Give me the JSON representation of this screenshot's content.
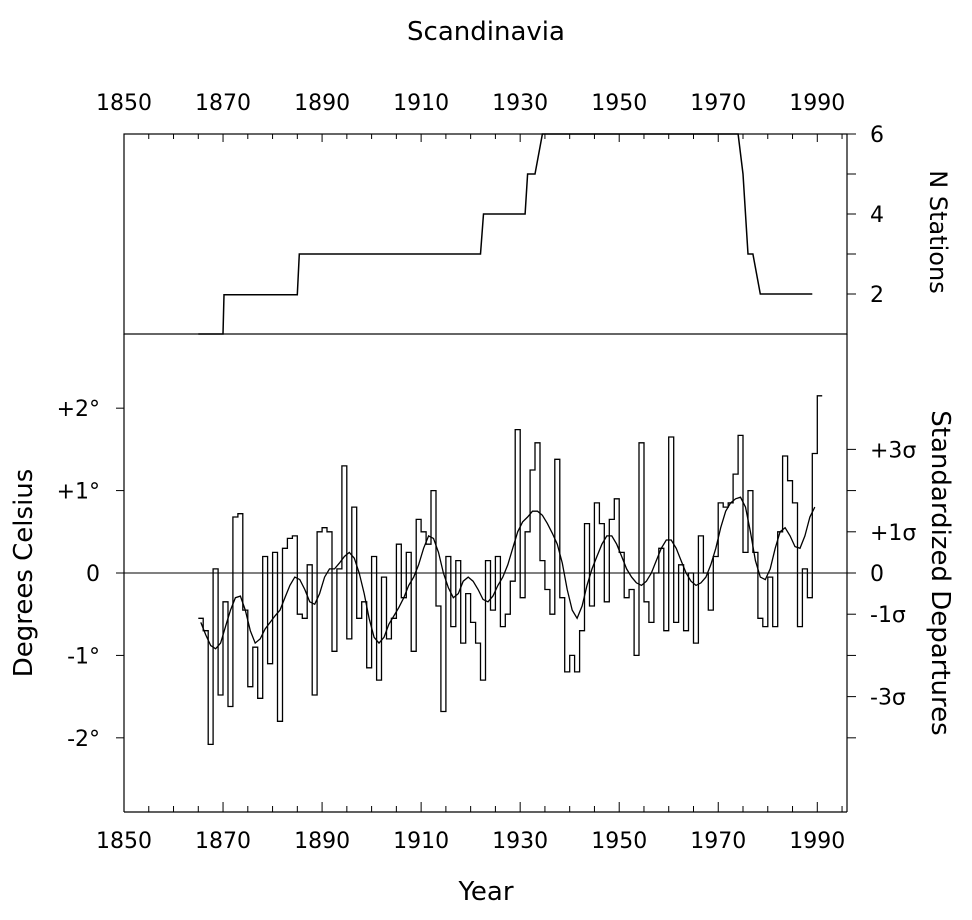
{
  "chart_data": [
    {
      "type": "line",
      "title": "Scandinavia",
      "y_axis_label": "N Stations",
      "xlim": [
        1850,
        1996
      ],
      "ylim": [
        1,
        6
      ],
      "x_tick_labels": [
        "1850",
        "1870",
        "1890",
        "1910",
        "1930",
        "1950",
        "1970",
        "1990"
      ],
      "y_tick_labels": [
        "2",
        "4",
        "6"
      ],
      "series": [
        {
          "values": [
            [
              1865,
              1
            ],
            [
              1870,
              1
            ],
            [
              1870.2,
              1.98
            ],
            [
              1885,
              1.98
            ],
            [
              1885.4,
              3
            ],
            [
              1922,
              3
            ],
            [
              1922.6,
              4
            ],
            [
              1931,
              4
            ],
            [
              1931.5,
              5
            ],
            [
              1933,
              5
            ],
            [
              1934.5,
              6
            ],
            [
              1974,
              6
            ],
            [
              1975,
              5
            ],
            [
              1976,
              3
            ],
            [
              1977,
              3
            ],
            [
              1978.5,
              2
            ],
            [
              1989,
              2
            ]
          ]
        }
      ]
    },
    {
      "type": "bar",
      "xlabel": "Year",
      "ylabel": "Degrees Celsius",
      "y2label": "Standardized Departures",
      "xlim": [
        1850,
        1996
      ],
      "ylim": [
        -2.9,
        2.9
      ],
      "x_tick_labels": [
        "1850",
        "1870",
        "1890",
        "1910",
        "1930",
        "1950",
        "1970",
        "1990"
      ],
      "y_tick_labels": [
        "+2°",
        "+1°",
        "0",
        "-1°",
        "-2°"
      ],
      "y2_tick_labels": [
        "+3σ",
        "+1σ",
        "0",
        "-1σ",
        "-3σ"
      ],
      "years_start": 1865,
      "annual_anomalies": [
        -0.55,
        -0.7,
        -2.08,
        0.05,
        -1.48,
        -0.35,
        -1.62,
        0.68,
        0.72,
        -0.45,
        -1.38,
        -0.9,
        -1.52,
        0.2,
        -1.1,
        0.25,
        -1.8,
        0.3,
        0.42,
        0.45,
        -0.5,
        -0.55,
        0.1,
        -1.48,
        0.5,
        0.55,
        0.5,
        -0.95,
        0.05,
        1.3,
        -0.8,
        0.8,
        -0.55,
        -0.35,
        -1.15,
        0.2,
        -1.3,
        -0.05,
        -0.8,
        -0.55,
        0.35,
        -0.3,
        0.25,
        -0.95,
        0.65,
        0.5,
        0.35,
        1.0,
        -0.4,
        -1.68,
        0.2,
        -0.65,
        0.15,
        -0.85,
        -0.25,
        -0.6,
        -0.85,
        -1.3,
        0.15,
        -0.45,
        0.2,
        -0.65,
        -0.5,
        -0.1,
        1.74,
        -0.3,
        0.5,
        1.25,
        1.58,
        0.15,
        -0.2,
        -0.5,
        1.38,
        -0.3,
        -1.2,
        -1.0,
        -1.2,
        -0.7,
        0.6,
        -0.4,
        0.85,
        0.6,
        -0.35,
        0.65,
        0.9,
        0.25,
        -0.3,
        -0.2,
        -1.0,
        1.58,
        -0.35,
        -0.6,
        0.0,
        0.3,
        -0.7,
        1.65,
        -0.6,
        0.1,
        -0.7,
        0.0,
        -0.85,
        0.45,
        0.0,
        -0.45,
        0.2,
        0.85,
        0.8,
        0.85,
        1.2,
        1.67,
        0.25,
        1.0,
        0.25,
        -0.55,
        -0.65,
        -0.05,
        -0.65,
        0.5,
        1.42,
        1.12,
        0.85,
        -0.65,
        0.05,
        -0.3,
        1.45,
        2.15
      ],
      "smoothed": [
        [
          1865,
          -0.6
        ],
        [
          1866,
          -0.75
        ],
        [
          1867,
          -0.88
        ],
        [
          1868,
          -0.92
        ],
        [
          1869,
          -0.85
        ],
        [
          1870,
          -0.65
        ],
        [
          1871,
          -0.45
        ],
        [
          1872,
          -0.3
        ],
        [
          1873,
          -0.28
        ],
        [
          1874,
          -0.45
        ],
        [
          1875,
          -0.7
        ],
        [
          1876,
          -0.85
        ],
        [
          1877,
          -0.8
        ],
        [
          1878,
          -0.68
        ],
        [
          1879,
          -0.6
        ],
        [
          1880,
          -0.52
        ],
        [
          1881,
          -0.45
        ],
        [
          1882,
          -0.3
        ],
        [
          1883,
          -0.15
        ],
        [
          1884,
          -0.05
        ],
        [
          1885,
          -0.08
        ],
        [
          1886,
          -0.2
        ],
        [
          1887,
          -0.35
        ],
        [
          1888,
          -0.38
        ],
        [
          1889,
          -0.25
        ],
        [
          1890,
          -0.05
        ],
        [
          1891,
          0.05
        ],
        [
          1892,
          0.05
        ],
        [
          1893,
          0.12
        ],
        [
          1894,
          0.2
        ],
        [
          1895,
          0.25
        ],
        [
          1896,
          0.18
        ],
        [
          1897,
          0.0
        ],
        [
          1898,
          -0.25
        ],
        [
          1899,
          -0.55
        ],
        [
          1900,
          -0.78
        ],
        [
          1901,
          -0.85
        ],
        [
          1902,
          -0.78
        ],
        [
          1903,
          -0.62
        ],
        [
          1904,
          -0.52
        ],
        [
          1905,
          -0.42
        ],
        [
          1906,
          -0.3
        ],
        [
          1907,
          -0.15
        ],
        [
          1908,
          -0.05
        ],
        [
          1909,
          0.1
        ],
        [
          1910,
          0.3
        ],
        [
          1911,
          0.45
        ],
        [
          1912,
          0.42
        ],
        [
          1913,
          0.25
        ],
        [
          1914,
          0.0
        ],
        [
          1915,
          -0.18
        ],
        [
          1916,
          -0.3
        ],
        [
          1917,
          -0.25
        ],
        [
          1918,
          -0.1
        ],
        [
          1919,
          -0.05
        ],
        [
          1920,
          -0.1
        ],
        [
          1921,
          -0.2
        ],
        [
          1922,
          -0.32
        ],
        [
          1923,
          -0.35
        ],
        [
          1924,
          -0.28
        ],
        [
          1925,
          -0.15
        ],
        [
          1926,
          -0.05
        ],
        [
          1927,
          0.1
        ],
        [
          1928,
          0.3
        ],
        [
          1929,
          0.5
        ],
        [
          1930,
          0.62
        ],
        [
          1931,
          0.68
        ],
        [
          1932,
          0.75
        ],
        [
          1933,
          0.75
        ],
        [
          1934,
          0.7
        ],
        [
          1935,
          0.6
        ],
        [
          1936,
          0.48
        ],
        [
          1937,
          0.35
        ],
        [
          1938,
          0.12
        ],
        [
          1939,
          -0.2
        ],
        [
          1940,
          -0.45
        ],
        [
          1941,
          -0.55
        ],
        [
          1942,
          -0.4
        ],
        [
          1943,
          -0.15
        ],
        [
          1944,
          0.05
        ],
        [
          1945,
          0.2
        ],
        [
          1946,
          0.35
        ],
        [
          1947,
          0.45
        ],
        [
          1948,
          0.45
        ],
        [
          1949,
          0.35
        ],
        [
          1950,
          0.2
        ],
        [
          1951,
          0.05
        ],
        [
          1952,
          -0.05
        ],
        [
          1953,
          -0.12
        ],
        [
          1954,
          -0.15
        ],
        [
          1955,
          -0.1
        ],
        [
          1956,
          0.0
        ],
        [
          1957,
          0.15
        ],
        [
          1958,
          0.3
        ],
        [
          1959,
          0.4
        ],
        [
          1960,
          0.4
        ],
        [
          1961,
          0.3
        ],
        [
          1962,
          0.15
        ],
        [
          1963,
          0.0
        ],
        [
          1964,
          -0.1
        ],
        [
          1965,
          -0.15
        ],
        [
          1966,
          -0.12
        ],
        [
          1967,
          -0.05
        ],
        [
          1968,
          0.1
        ],
        [
          1969,
          0.3
        ],
        [
          1970,
          0.55
        ],
        [
          1971,
          0.75
        ],
        [
          1972,
          0.85
        ],
        [
          1973,
          0.9
        ],
        [
          1974,
          0.92
        ],
        [
          1975,
          0.8
        ],
        [
          1976,
          0.5
        ],
        [
          1977,
          0.15
        ],
        [
          1978,
          -0.05
        ],
        [
          1979,
          -0.08
        ],
        [
          1980,
          0.05
        ],
        [
          1981,
          0.3
        ],
        [
          1982,
          0.5
        ],
        [
          1983,
          0.55
        ],
        [
          1984,
          0.45
        ],
        [
          1985,
          0.32
        ],
        [
          1986,
          0.3
        ],
        [
          1987,
          0.45
        ],
        [
          1988,
          0.68
        ],
        [
          1989,
          0.8
        ]
      ]
    }
  ]
}
